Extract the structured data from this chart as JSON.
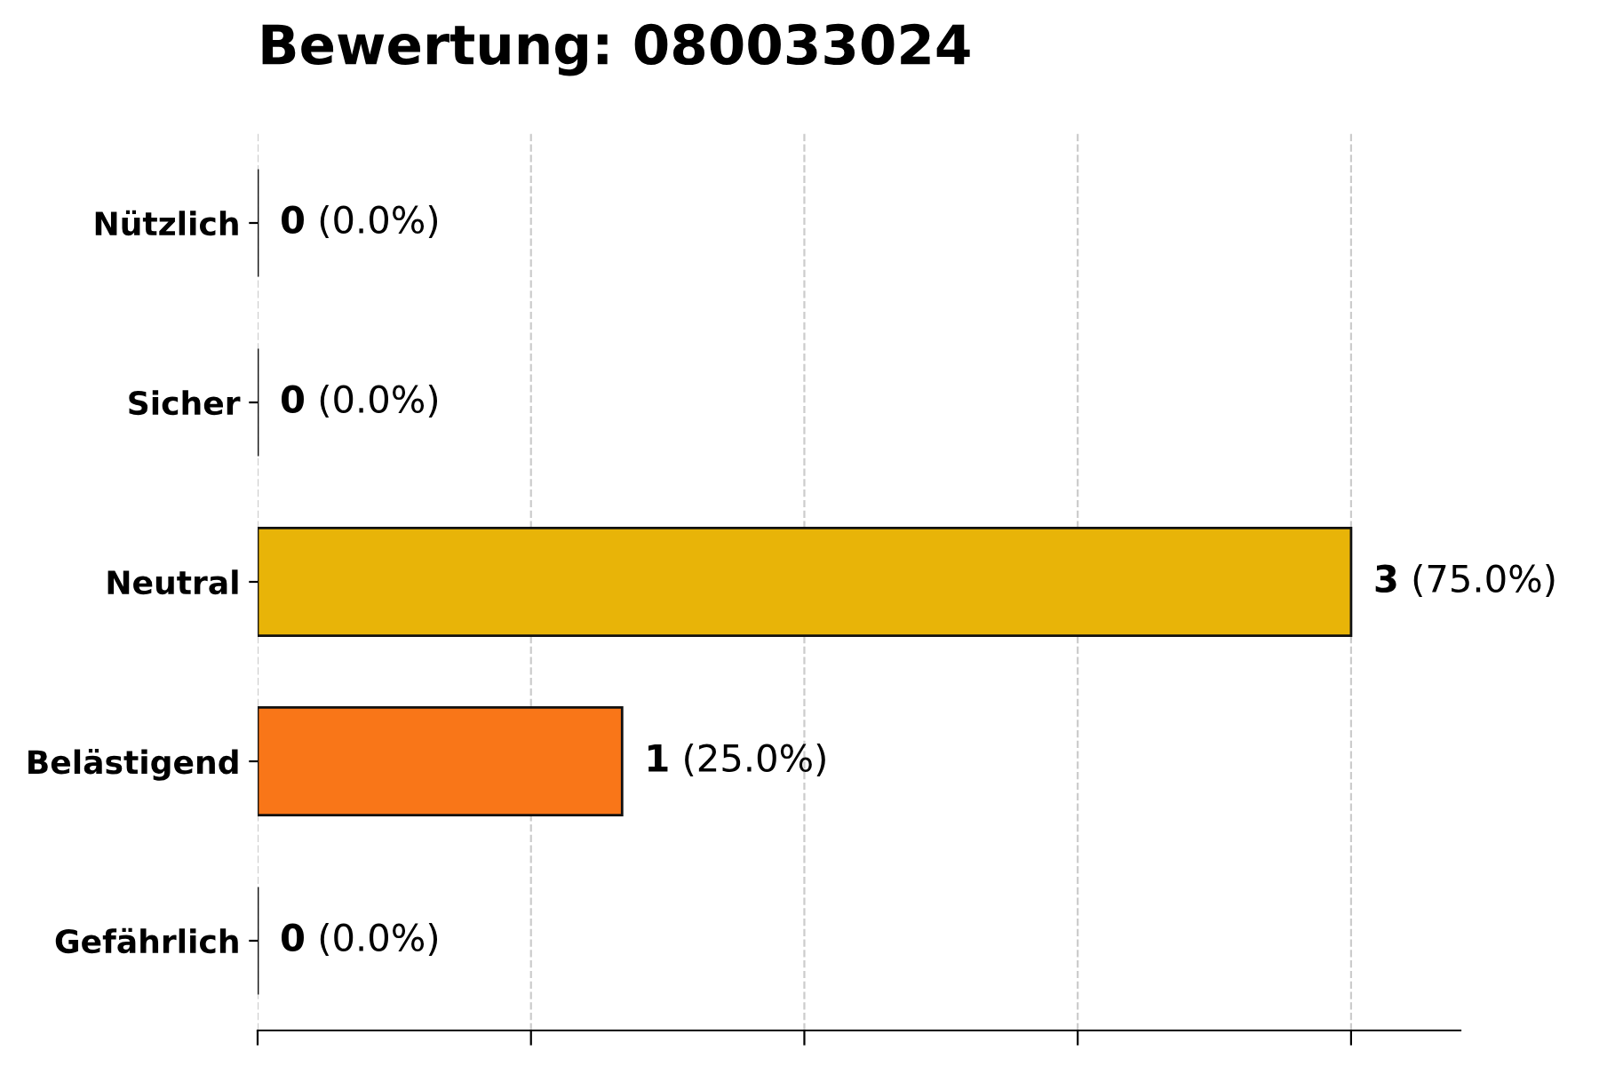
{
  "chart_data": {
    "type": "bar",
    "orientation": "horizontal",
    "title": "Bewertung: 080033024",
    "categories": [
      "Nützlich",
      "Sicher",
      "Neutral",
      "Belästigend",
      "Gefährlich"
    ],
    "values": [
      0,
      0,
      3,
      1,
      0
    ],
    "colors": [
      "#111111",
      "#111111",
      "#e8b408",
      "#f97618",
      "#111111"
    ],
    "value_labels": [
      "0 (0.0%)",
      "0 (0.0%)",
      "3 (75.0%)",
      "1 (25.0%)",
      "0 (0.0%)"
    ],
    "xlim": [
      0,
      3.3
    ],
    "xticks": [
      {
        "value": 0,
        "label": null
      },
      {
        "value": 0.75,
        "label": null
      },
      {
        "value": 1.5,
        "label": null
      },
      {
        "value": 2.25,
        "label": null
      },
      {
        "value": 3,
        "label": null
      }
    ],
    "tick_labels": "y",
    "grid": "x",
    "legend": false
  }
}
